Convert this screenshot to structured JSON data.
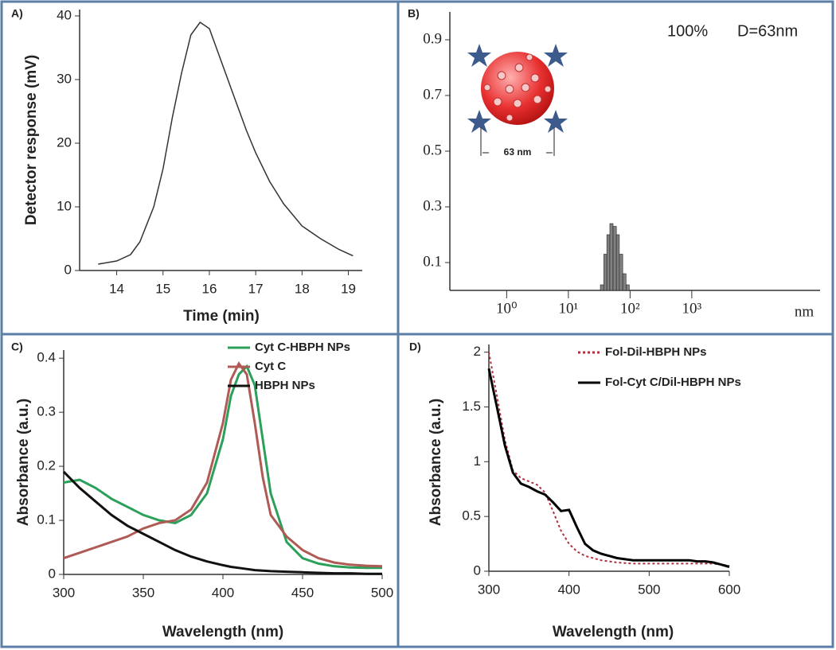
{
  "chart_data": [
    {
      "type": "line",
      "label": "A)",
      "xlabel": "Time (min)",
      "ylabel": "Detector response (mV)",
      "x": [
        13.6,
        14,
        14.3,
        14.5,
        14.8,
        15,
        15.2,
        15.4,
        15.6,
        15.8,
        16,
        16.2,
        16.5,
        16.8,
        17,
        17.3,
        17.6,
        18,
        18.4,
        18.8,
        19.1
      ],
      "series": [
        {
          "name": null,
          "color": "#333333",
          "values": [
            1,
            1.5,
            2.5,
            4.5,
            10,
            16,
            24,
            31,
            37,
            39,
            38,
            34,
            28,
            22,
            18.5,
            14,
            10.5,
            7,
            5,
            3.3,
            2.3
          ]
        }
      ],
      "xlim": [
        13.2,
        19.3
      ],
      "ylim": [
        0,
        41
      ],
      "xticks": [
        14,
        15,
        16,
        17,
        18,
        19
      ],
      "yticks": [
        0,
        10,
        20,
        30,
        40
      ]
    },
    {
      "type": "histogram",
      "label": "B)",
      "xunit": "nm",
      "annotations": [
        "100%",
        "D=63nm",
        "63 nm"
      ],
      "bins": [
        33,
        37.5,
        42,
        47,
        53,
        60,
        67,
        76,
        86,
        97
      ],
      "counts": [
        0.02,
        0.13,
        0.2,
        0.24,
        0.23,
        0.2,
        0.13,
        0.06,
        0.02
      ],
      "color": "#808080",
      "xscale": "log",
      "xlim": [
        0.12,
        120000
      ],
      "ylim": [
        0,
        1
      ],
      "xticks": [
        {
          "value": 1,
          "label": "10⁰"
        },
        {
          "value": 10,
          "label": "10¹"
        },
        {
          "value": 100,
          "label": "10²"
        },
        {
          "value": 1000,
          "label": "10³"
        }
      ],
      "yticks": [
        0.1,
        0.3,
        0.5,
        0.7,
        0.9
      ]
    },
    {
      "type": "line",
      "label": "C)",
      "xlabel": "Wavelength (nm)",
      "ylabel": "Absorbance (a.u.)",
      "x": [
        300,
        310,
        320,
        330,
        340,
        350,
        360,
        370,
        380,
        390,
        400,
        405,
        410,
        415,
        420,
        425,
        430,
        440,
        450,
        460,
        470,
        480,
        490,
        500
      ],
      "series": [
        {
          "name": "Cyt C-HBPH NPs",
          "color": "#2ca05a",
          "values": [
            0.17,
            0.175,
            0.16,
            0.14,
            0.125,
            0.11,
            0.1,
            0.095,
            0.11,
            0.15,
            0.25,
            0.33,
            0.37,
            0.385,
            0.35,
            0.25,
            0.15,
            0.06,
            0.03,
            0.02,
            0.015,
            0.013,
            0.012,
            0.012
          ]
        },
        {
          "name": "Cyt C",
          "color": "#b05a55",
          "values": [
            0.03,
            0.04,
            0.05,
            0.06,
            0.07,
            0.085,
            0.095,
            0.1,
            0.12,
            0.17,
            0.28,
            0.36,
            0.39,
            0.37,
            0.28,
            0.18,
            0.11,
            0.07,
            0.045,
            0.03,
            0.022,
            0.018,
            0.016,
            0.015
          ]
        },
        {
          "name": "HBPH NPs",
          "color": "#111111",
          "values": [
            0.19,
            0.16,
            0.135,
            0.11,
            0.09,
            0.075,
            0.06,
            0.045,
            0.033,
            0.024,
            0.017,
            0.014,
            0.012,
            0.01,
            0.008,
            0.007,
            0.006,
            0.005,
            0.004,
            0.003,
            0.002,
            0.002,
            0.001,
            0.001
          ]
        }
      ],
      "xlim": [
        300,
        500
      ],
      "ylim": [
        0,
        0.415
      ],
      "xticks": [
        300,
        350,
        400,
        450,
        500
      ],
      "yticks": [
        0,
        0.1,
        0.2,
        0.3,
        0.4
      ]
    },
    {
      "type": "line",
      "label": "D)",
      "xlabel": "Wavelength (nm)",
      "ylabel": "Absorbance (a.u.)",
      "x": [
        300,
        310,
        320,
        330,
        340,
        350,
        360,
        370,
        380,
        390,
        400,
        410,
        420,
        430,
        440,
        450,
        460,
        470,
        480,
        490,
        500,
        510,
        520,
        530,
        540,
        550,
        560,
        570,
        580,
        590,
        600
      ],
      "series": [
        {
          "name": "Fol-Dil-HBPH NPs",
          "color": "#b03040",
          "style": "dotted",
          "values": [
            2.0,
            1.6,
            1.2,
            0.92,
            0.85,
            0.82,
            0.79,
            0.72,
            0.55,
            0.37,
            0.25,
            0.18,
            0.14,
            0.12,
            0.1,
            0.09,
            0.08,
            0.075,
            0.07,
            0.07,
            0.07,
            0.07,
            0.07,
            0.07,
            0.07,
            0.07,
            0.07,
            0.07,
            0.07,
            0.06,
            0.05
          ]
        },
        {
          "name": "Fol-Cyt C/Dil-HBPH NPs",
          "color": "#000000",
          "style": "solid",
          "values": [
            1.85,
            1.5,
            1.15,
            0.9,
            0.8,
            0.77,
            0.73,
            0.7,
            0.63,
            0.55,
            0.56,
            0.4,
            0.25,
            0.19,
            0.16,
            0.14,
            0.12,
            0.11,
            0.1,
            0.1,
            0.1,
            0.1,
            0.1,
            0.1,
            0.1,
            0.1,
            0.09,
            0.09,
            0.08,
            0.06,
            0.04
          ]
        }
      ],
      "xlim": [
        300,
        600
      ],
      "ylim": [
        0,
        2.07
      ],
      "xticks": [
        300,
        400,
        500,
        600
      ],
      "yticks": [
        0,
        {
          "value": 0.5,
          "label": "0.5"
        },
        1,
        1.5,
        2
      ]
    }
  ]
}
